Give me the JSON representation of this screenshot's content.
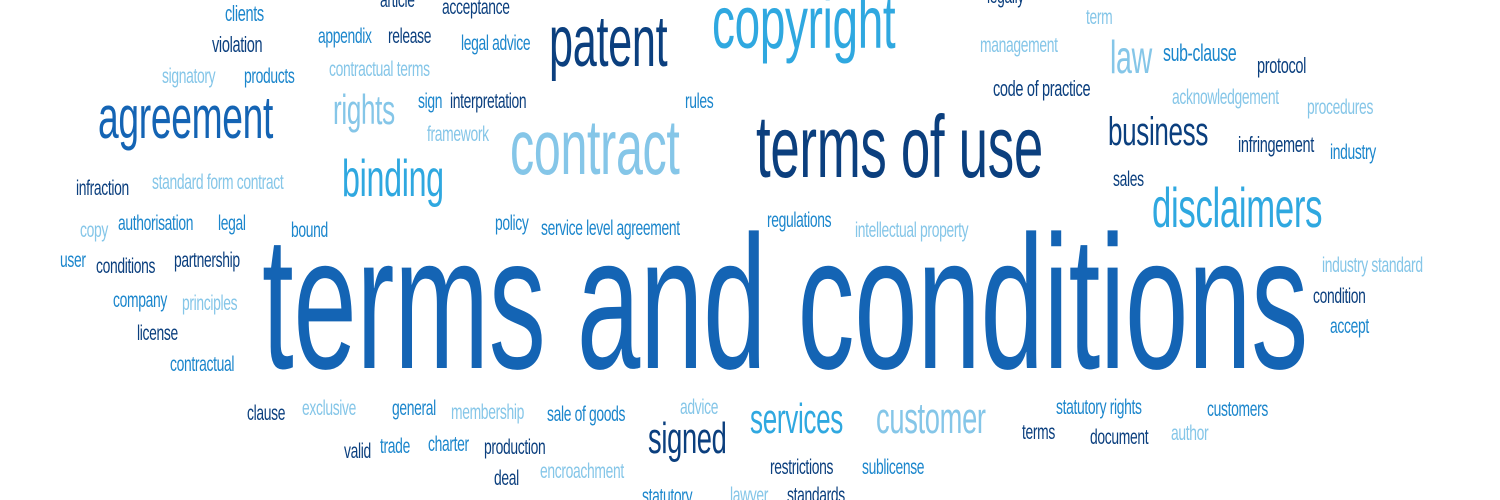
{
  "palette": {
    "navy": "#0b3f7e",
    "royal": "#1464b4",
    "mid": "#1b86cc",
    "sky": "#2fa8e0",
    "pale": "#85c6e8"
  },
  "words": [
    {
      "text": "terms and conditions",
      "tone": "royal"
    },
    {
      "text": "contract",
      "tone": "pale"
    },
    {
      "text": "terms of use",
      "tone": "navy"
    },
    {
      "text": "copyright",
      "tone": "sky"
    },
    {
      "text": "patent",
      "tone": "navy"
    },
    {
      "text": "agreement",
      "tone": "royal"
    },
    {
      "text": "disclaimers",
      "tone": "sky"
    },
    {
      "text": "binding",
      "tone": "sky"
    },
    {
      "text": "business",
      "tone": "navy"
    },
    {
      "text": "signed",
      "tone": "navy"
    },
    {
      "text": "customer",
      "tone": "pale"
    },
    {
      "text": "services",
      "tone": "sky"
    },
    {
      "text": "rights",
      "tone": "pale"
    },
    {
      "text": "law",
      "tone": "pale"
    },
    {
      "text": "clients",
      "tone": "mid"
    },
    {
      "text": "violation",
      "tone": "navy"
    },
    {
      "text": "signatory",
      "tone": "pale"
    },
    {
      "text": "products",
      "tone": "mid"
    },
    {
      "text": "article",
      "tone": "navy"
    },
    {
      "text": "acceptance",
      "tone": "navy"
    },
    {
      "text": "appendix",
      "tone": "mid"
    },
    {
      "text": "release",
      "tone": "navy"
    },
    {
      "text": "legal advice",
      "tone": "mid"
    },
    {
      "text": "contractual terms",
      "tone": "pale"
    },
    {
      "text": "sign",
      "tone": "mid"
    },
    {
      "text": "interpretation",
      "tone": "navy"
    },
    {
      "text": "rules",
      "tone": "mid"
    },
    {
      "text": "framework",
      "tone": "pale"
    },
    {
      "text": "legally",
      "tone": "navy"
    },
    {
      "text": "term",
      "tone": "pale"
    },
    {
      "text": "management",
      "tone": "pale"
    },
    {
      "text": "sub-clause",
      "tone": "mid"
    },
    {
      "text": "protocol",
      "tone": "navy"
    },
    {
      "text": "code of practice",
      "tone": "navy"
    },
    {
      "text": "acknowledgement",
      "tone": "pale"
    },
    {
      "text": "procedures",
      "tone": "pale"
    },
    {
      "text": "infringement",
      "tone": "navy"
    },
    {
      "text": "industry",
      "tone": "mid"
    },
    {
      "text": "sales",
      "tone": "navy"
    },
    {
      "text": "infraction",
      "tone": "navy"
    },
    {
      "text": "standard form contract",
      "tone": "pale"
    },
    {
      "text": "copy",
      "tone": "pale"
    },
    {
      "text": "authorisation",
      "tone": "mid"
    },
    {
      "text": "legal",
      "tone": "mid"
    },
    {
      "text": "bound",
      "tone": "mid"
    },
    {
      "text": "policy",
      "tone": "mid"
    },
    {
      "text": "service level agreement",
      "tone": "mid"
    },
    {
      "text": "regulations",
      "tone": "mid"
    },
    {
      "text": "intellectual property",
      "tone": "pale"
    },
    {
      "text": "user",
      "tone": "mid"
    },
    {
      "text": "conditions",
      "tone": "navy"
    },
    {
      "text": "partnership",
      "tone": "navy"
    },
    {
      "text": "industry standard",
      "tone": "pale"
    },
    {
      "text": "company",
      "tone": "mid"
    },
    {
      "text": "principles",
      "tone": "pale"
    },
    {
      "text": "condition",
      "tone": "navy"
    },
    {
      "text": "accept",
      "tone": "mid"
    },
    {
      "text": "license",
      "tone": "navy"
    },
    {
      "text": "contractual",
      "tone": "mid"
    },
    {
      "text": "clause",
      "tone": "navy"
    },
    {
      "text": "exclusive",
      "tone": "pale"
    },
    {
      "text": "general",
      "tone": "mid"
    },
    {
      "text": "membership",
      "tone": "pale"
    },
    {
      "text": "sale of goods",
      "tone": "mid"
    },
    {
      "text": "advice",
      "tone": "pale"
    },
    {
      "text": "statutory rights",
      "tone": "mid"
    },
    {
      "text": "customers",
      "tone": "mid"
    },
    {
      "text": "valid",
      "tone": "navy"
    },
    {
      "text": "trade",
      "tone": "mid"
    },
    {
      "text": "charter",
      "tone": "mid"
    },
    {
      "text": "production",
      "tone": "navy"
    },
    {
      "text": "terms",
      "tone": "navy"
    },
    {
      "text": "document",
      "tone": "navy"
    },
    {
      "text": "author",
      "tone": "pale"
    },
    {
      "text": "deal",
      "tone": "navy"
    },
    {
      "text": "encroachment",
      "tone": "pale"
    },
    {
      "text": "restrictions",
      "tone": "navy"
    },
    {
      "text": "sublicense",
      "tone": "mid"
    },
    {
      "text": "statutory",
      "tone": "mid"
    },
    {
      "text": "lawyer",
      "tone": "pale"
    },
    {
      "text": "standards",
      "tone": "navy"
    }
  ]
}
